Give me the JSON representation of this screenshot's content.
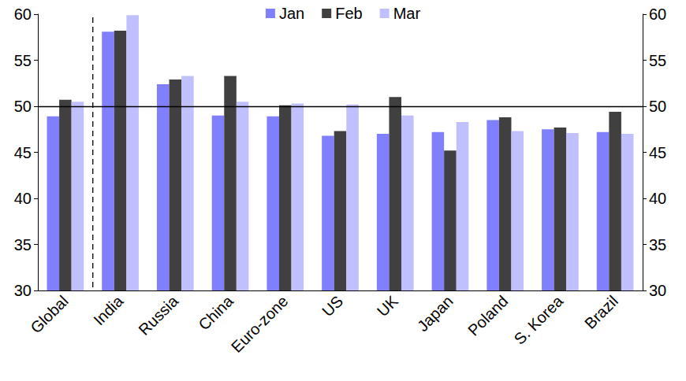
{
  "chart_data": {
    "type": "bar",
    "categories": [
      "Global",
      "India",
      "Russia",
      "China",
      "Euro-zone",
      "US",
      "UK",
      "Japan",
      "Poland",
      "S. Korea",
      "Brazil"
    ],
    "series": [
      {
        "name": "Jan",
        "color": "#8080ff",
        "values": [
          48.9,
          58.1,
          52.4,
          49.0,
          48.9,
          46.8,
          47.0,
          47.2,
          48.5,
          47.5,
          47.2
        ]
      },
      {
        "name": "Feb",
        "color": "#404040",
        "values": [
          50.7,
          58.2,
          52.9,
          53.3,
          50.1,
          47.3,
          51.0,
          45.2,
          48.8,
          47.7,
          49.4
        ]
      },
      {
        "name": "Mar",
        "color": "#c0c0ff",
        "values": [
          50.5,
          59.9,
          53.3,
          50.5,
          50.3,
          50.2,
          49.0,
          48.3,
          47.3,
          47.1,
          47.0
        ]
      }
    ],
    "ylim": [
      30,
      60
    ],
    "yticks": [
      30,
      35,
      40,
      45,
      50,
      55,
      60
    ],
    "y2lim": [
      30,
      60
    ],
    "y2ticks": [
      30,
      35,
      40,
      45,
      50,
      55,
      60
    ],
    "reference_lines": [
      {
        "axis": "y",
        "value": 50
      }
    ],
    "grid": false,
    "legend": "top"
  }
}
